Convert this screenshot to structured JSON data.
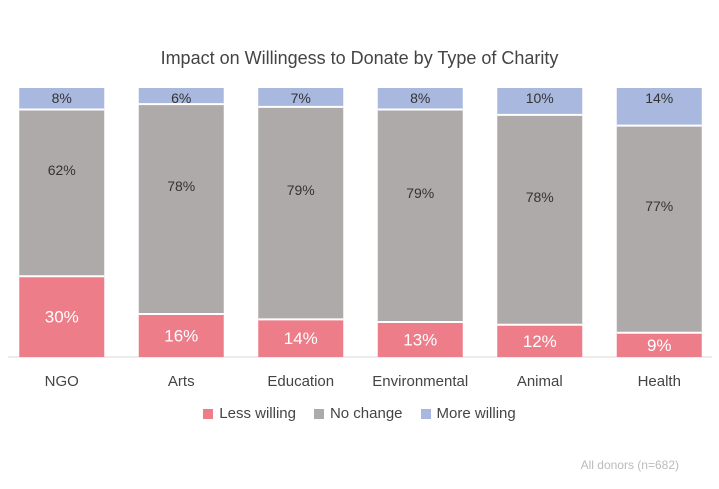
{
  "chart_data": {
    "type": "bar",
    "stacked": true,
    "percent_stacked": true,
    "title": "Impact on Willingess to Donate by Type of Charity",
    "categories": [
      "NGO",
      "Arts",
      "Education",
      "Environmental",
      "Animal",
      "Health"
    ],
    "series": [
      {
        "name": "Less willing",
        "values": [
          30,
          16,
          14,
          13,
          12,
          9
        ],
        "color": "#ee7d8a",
        "label_color": "#ffffff"
      },
      {
        "name": "No change",
        "values": [
          62,
          78,
          79,
          79,
          78,
          77
        ],
        "color": "#aeaaaa",
        "label_color": "#333333"
      },
      {
        "name": "More willing",
        "values": [
          8,
          6,
          7,
          8,
          10,
          14
        ],
        "color": "#a9b8de",
        "label_color": "#333333"
      }
    ],
    "value_suffix": "%",
    "ylim": [
      0,
      100
    ],
    "legend_position": "bottom",
    "grid": false,
    "footnote": "All donors (n=682)"
  }
}
